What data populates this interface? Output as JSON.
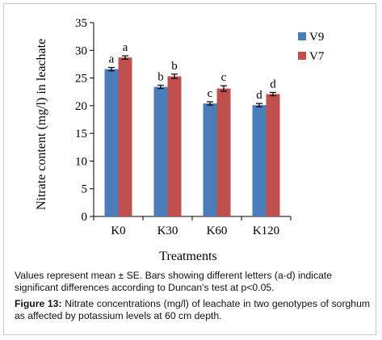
{
  "chart_data": {
    "type": "bar",
    "title": "",
    "xlabel": "Treatments",
    "ylabel": "Nitrate content (mg/l) in leachate",
    "categories": [
      "K0",
      "K30",
      "K60",
      "K120"
    ],
    "ylim": [
      0,
      35
    ],
    "yticks": [
      "0",
      "5",
      "10",
      "15",
      "20",
      "25",
      "30",
      "35"
    ],
    "legend_position": "right",
    "error_bars": true,
    "series": [
      {
        "name": "V9",
        "color": "#4a7ebb",
        "values": [
          26.6,
          23.4,
          20.4,
          20.1
        ],
        "errors": [
          0.3,
          0.3,
          0.3,
          0.3
        ],
        "letters": [
          "a",
          "b",
          "c",
          "d"
        ]
      },
      {
        "name": "V7",
        "color": "#c0504d",
        "values": [
          28.7,
          25.3,
          23.1,
          22.1
        ],
        "errors": [
          0.3,
          0.4,
          0.5,
          0.3
        ],
        "letters": [
          "a",
          "b",
          "c",
          "d"
        ]
      }
    ]
  },
  "caption": {
    "note": "Values represent mean ± SE. Bars showing different  letters (a-d) indicate significant differences according to Duncan's test at p<0.05.",
    "figure_label": "Figure 13:",
    "figure_text": " Nitrate concentrations (mg/l) of leachate in two genotypes of sorghum as affected by potassium levels at 60 cm depth."
  }
}
